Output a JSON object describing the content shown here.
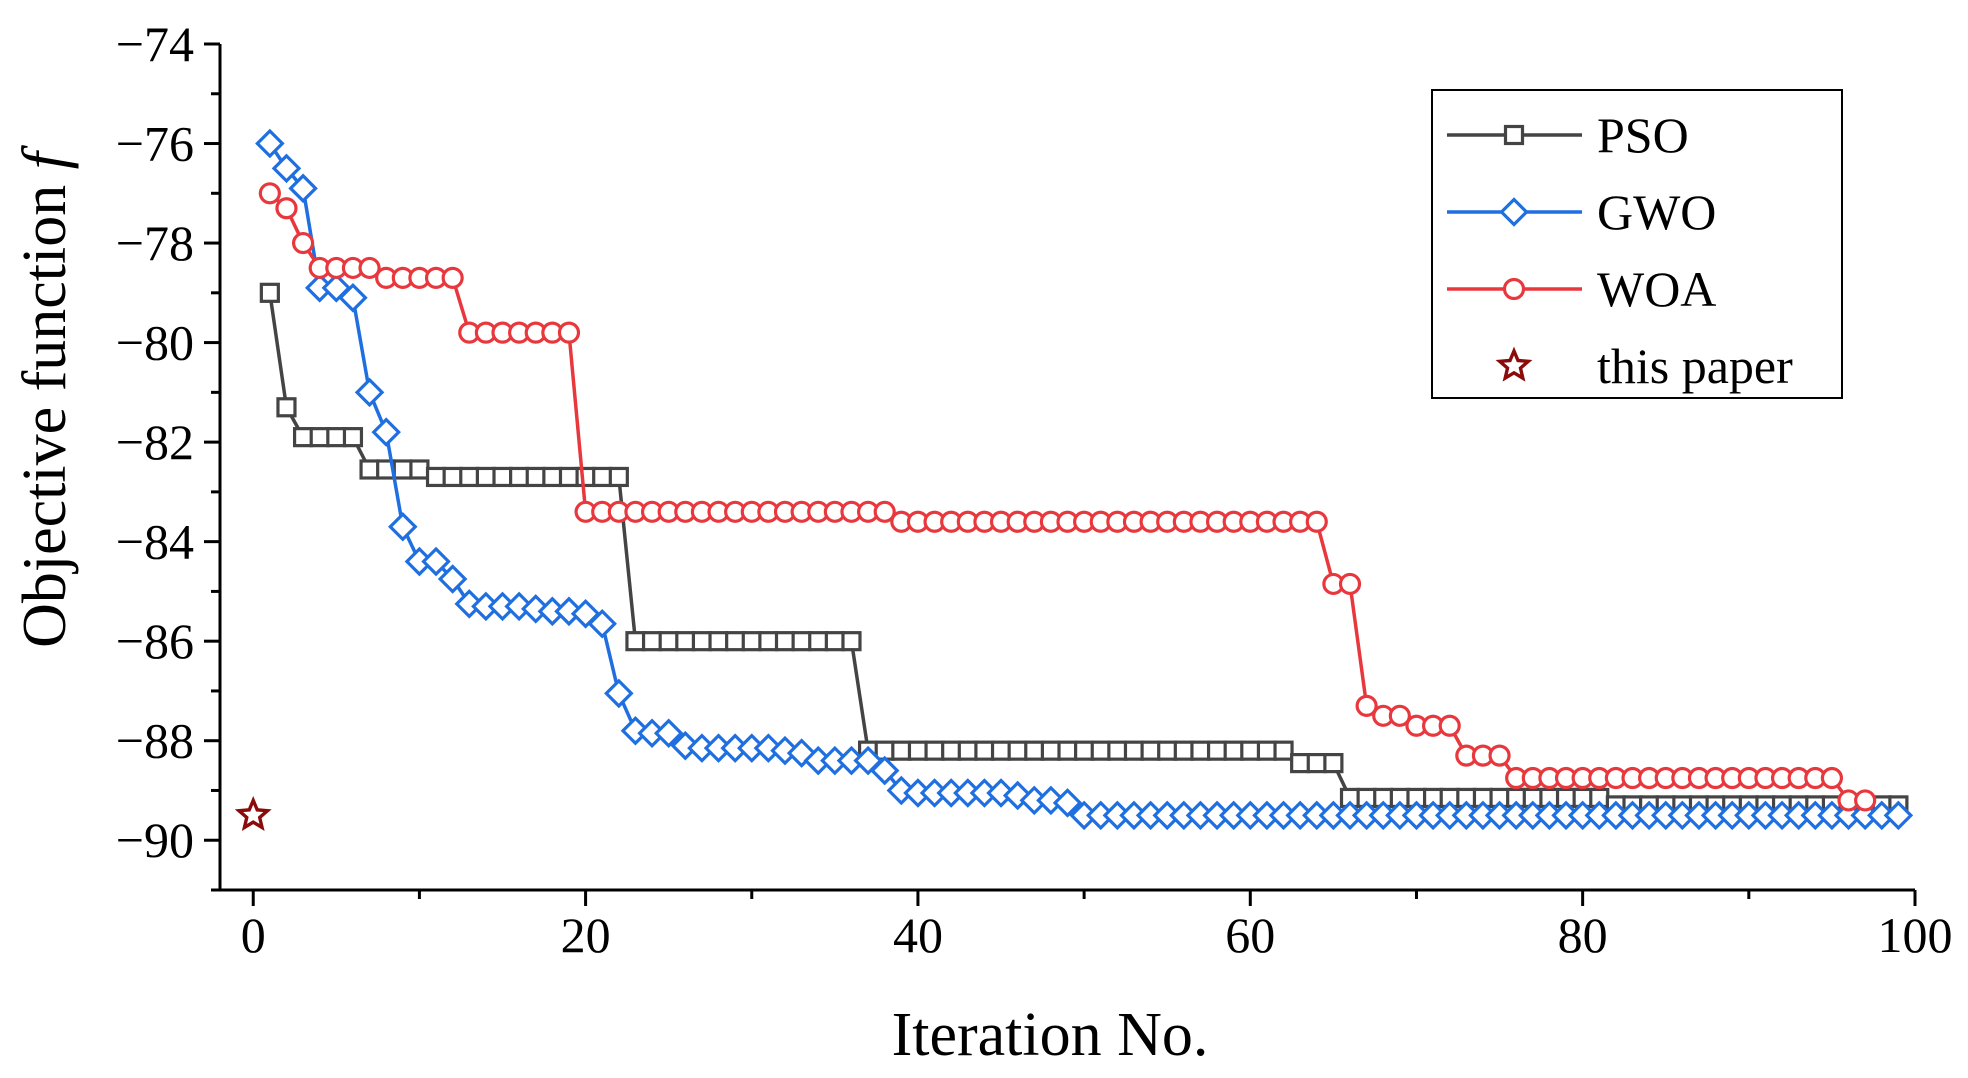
{
  "chart_data": {
    "type": "line",
    "xlabel": "Iteration No.",
    "ylabel": "Objective function",
    "ylabel_symbol": "f",
    "xlim": [
      -2,
      100
    ],
    "ylim": [
      -91,
      -74
    ],
    "x_ticks": [
      0,
      20,
      40,
      60,
      80,
      100
    ],
    "x_tick_labels": [
      "0",
      "20",
      "40",
      "60",
      "80",
      "100"
    ],
    "y_ticks": [
      -74,
      -76,
      -78,
      -80,
      -82,
      -84,
      -86,
      -88,
      -90
    ],
    "y_tick_labels": [
      "−74",
      "−76",
      "−78",
      "−80",
      "−82",
      "−84",
      "−86",
      "−88",
      "−90"
    ],
    "legend_position": "top-right",
    "series": [
      {
        "name": "PSO",
        "color": "#444444",
        "marker": "square",
        "x": [
          1,
          2,
          3,
          4,
          5,
          6,
          7,
          8,
          9,
          10,
          11,
          12,
          13,
          14,
          15,
          16,
          17,
          18,
          19,
          20,
          21,
          22,
          23,
          24,
          25,
          26,
          27,
          28,
          29,
          30,
          31,
          32,
          33,
          34,
          35,
          36,
          37,
          38,
          39,
          40,
          41,
          42,
          43,
          44,
          45,
          46,
          47,
          48,
          49,
          50,
          51,
          52,
          53,
          54,
          55,
          56,
          57,
          58,
          59,
          60,
          61,
          62,
          63,
          64,
          65,
          66,
          67,
          68,
          69,
          70,
          71,
          72,
          73,
          74,
          75,
          76,
          77,
          78,
          79,
          80,
          81,
          82,
          83,
          84,
          85,
          86,
          87,
          88,
          89,
          90,
          91,
          92,
          93,
          94,
          95,
          96,
          97,
          98,
          99
        ],
        "values": [
          -79.0,
          -81.3,
          -81.9,
          -81.9,
          -81.9,
          -81.9,
          -82.55,
          -82.55,
          -82.55,
          -82.55,
          -82.7,
          -82.7,
          -82.7,
          -82.7,
          -82.7,
          -82.7,
          -82.7,
          -82.7,
          -82.7,
          -82.7,
          -82.7,
          -82.7,
          -86.0,
          -86.0,
          -86.0,
          -86.0,
          -86.0,
          -86.0,
          -86.0,
          -86.0,
          -86.0,
          -86.0,
          -86.0,
          -86.0,
          -86.0,
          -86.0,
          -88.2,
          -88.2,
          -88.2,
          -88.2,
          -88.2,
          -88.2,
          -88.2,
          -88.2,
          -88.2,
          -88.2,
          -88.2,
          -88.2,
          -88.2,
          -88.2,
          -88.2,
          -88.2,
          -88.2,
          -88.2,
          -88.2,
          -88.2,
          -88.2,
          -88.2,
          -88.2,
          -88.2,
          -88.2,
          -88.2,
          -88.45,
          -88.45,
          -88.45,
          -89.15,
          -89.15,
          -89.15,
          -89.15,
          -89.15,
          -89.15,
          -89.15,
          -89.15,
          -89.15,
          -89.15,
          -89.15,
          -89.15,
          -89.15,
          -89.15,
          -89.15,
          -89.15,
          -89.3,
          -89.3,
          -89.3,
          -89.3,
          -89.3,
          -89.3,
          -89.3,
          -89.3,
          -89.3,
          -89.3,
          -89.3,
          -89.3,
          -89.3,
          -89.3,
          -89.3,
          -89.3,
          -89.3,
          -89.3
        ]
      },
      {
        "name": "GWO",
        "color": "#1f6fe0",
        "marker": "diamond",
        "x": [
          1,
          2,
          3,
          4,
          5,
          6,
          7,
          8,
          9,
          10,
          11,
          12,
          13,
          14,
          15,
          16,
          17,
          18,
          19,
          20,
          21,
          22,
          23,
          24,
          25,
          26,
          27,
          28,
          29,
          30,
          31,
          32,
          33,
          34,
          35,
          36,
          37,
          38,
          39,
          40,
          41,
          42,
          43,
          44,
          45,
          46,
          47,
          48,
          49,
          50,
          51,
          52,
          53,
          54,
          55,
          56,
          57,
          58,
          59,
          60,
          61,
          62,
          63,
          64,
          65,
          66,
          67,
          68,
          69,
          70,
          71,
          72,
          73,
          74,
          75,
          76,
          77,
          78,
          79,
          80,
          81,
          82,
          83,
          84,
          85,
          86,
          87,
          88,
          89,
          90,
          91,
          92,
          93,
          94,
          95,
          96,
          97,
          98,
          99
        ],
        "values": [
          -76.0,
          -76.5,
          -76.9,
          -78.9,
          -78.9,
          -79.1,
          -81.0,
          -81.8,
          -83.7,
          -84.4,
          -84.4,
          -84.75,
          -85.25,
          -85.3,
          -85.3,
          -85.3,
          -85.35,
          -85.4,
          -85.4,
          -85.45,
          -85.65,
          -87.05,
          -87.8,
          -87.85,
          -87.85,
          -88.1,
          -88.15,
          -88.15,
          -88.15,
          -88.15,
          -88.15,
          -88.2,
          -88.25,
          -88.4,
          -88.4,
          -88.4,
          -88.4,
          -88.6,
          -89.0,
          -89.05,
          -89.05,
          -89.05,
          -89.05,
          -89.05,
          -89.05,
          -89.1,
          -89.2,
          -89.2,
          -89.25,
          -89.5,
          -89.5,
          -89.5,
          -89.5,
          -89.5,
          -89.5,
          -89.5,
          -89.5,
          -89.5,
          -89.5,
          -89.5,
          -89.5,
          -89.5,
          -89.5,
          -89.5,
          -89.5,
          -89.5,
          -89.5,
          -89.5,
          -89.5,
          -89.5,
          -89.5,
          -89.5,
          -89.5,
          -89.5,
          -89.5,
          -89.5,
          -89.5,
          -89.5,
          -89.5,
          -89.5,
          -89.5,
          -89.5,
          -89.5,
          -89.5,
          -89.5,
          -89.5,
          -89.5,
          -89.5,
          -89.5,
          -89.5,
          -89.5,
          -89.5,
          -89.5,
          -89.5,
          -89.5,
          -89.5,
          -89.5,
          -89.5,
          -89.5
        ]
      },
      {
        "name": "WOA",
        "color": "#e8383d",
        "marker": "circle",
        "x": [
          1,
          2,
          3,
          4,
          5,
          6,
          7,
          8,
          9,
          10,
          11,
          12,
          13,
          14,
          15,
          16,
          17,
          18,
          19,
          20,
          21,
          22,
          23,
          24,
          25,
          26,
          27,
          28,
          29,
          30,
          31,
          32,
          33,
          34,
          35,
          36,
          37,
          38,
          39,
          40,
          41,
          42,
          43,
          44,
          45,
          46,
          47,
          48,
          49,
          50,
          51,
          52,
          53,
          54,
          55,
          56,
          57,
          58,
          59,
          60,
          61,
          62,
          63,
          64,
          65,
          66,
          67,
          68,
          69,
          70,
          71,
          72,
          73,
          74,
          75,
          76,
          77,
          78,
          79,
          80,
          81,
          82,
          83,
          84,
          85,
          86,
          87,
          88,
          89,
          90,
          91,
          92,
          93,
          94,
          95,
          96,
          97
        ],
        "values": [
          -77.0,
          -77.3,
          -78.0,
          -78.5,
          -78.5,
          -78.5,
          -78.5,
          -78.7,
          -78.7,
          -78.7,
          -78.7,
          -78.7,
          -79.8,
          -79.8,
          -79.8,
          -79.8,
          -79.8,
          -79.8,
          -79.8,
          -83.4,
          -83.4,
          -83.4,
          -83.4,
          -83.4,
          -83.4,
          -83.4,
          -83.4,
          -83.4,
          -83.4,
          -83.4,
          -83.4,
          -83.4,
          -83.4,
          -83.4,
          -83.4,
          -83.4,
          -83.4,
          -83.4,
          -83.6,
          -83.6,
          -83.6,
          -83.6,
          -83.6,
          -83.6,
          -83.6,
          -83.6,
          -83.6,
          -83.6,
          -83.6,
          -83.6,
          -83.6,
          -83.6,
          -83.6,
          -83.6,
          -83.6,
          -83.6,
          -83.6,
          -83.6,
          -83.6,
          -83.6,
          -83.6,
          -83.6,
          -83.6,
          -83.6,
          -84.85,
          -84.85,
          -87.3,
          -87.5,
          -87.5,
          -87.7,
          -87.7,
          -87.7,
          -88.3,
          -88.3,
          -88.3,
          -88.75,
          -88.75,
          -88.75,
          -88.75,
          -88.75,
          -88.75,
          -88.75,
          -88.75,
          -88.75,
          -88.75,
          -88.75,
          -88.75,
          -88.75,
          -88.75,
          -88.75,
          -88.75,
          -88.75,
          -88.75,
          -88.75,
          -88.75,
          -89.2,
          -89.2
        ]
      },
      {
        "name": "this paper",
        "color": "#8b0a0a",
        "marker": "star",
        "x": [
          0
        ],
        "values": [
          -89.5
        ]
      }
    ]
  }
}
